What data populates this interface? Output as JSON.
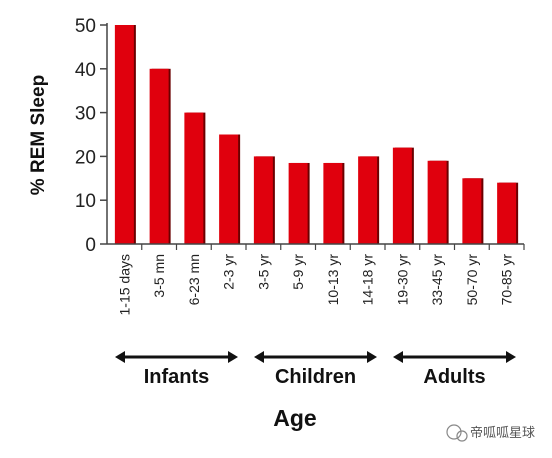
{
  "chart_data": {
    "type": "bar",
    "categories": [
      "1-15 days",
      "3-5 mn",
      "6-23 mn",
      "2-3 yr",
      "3-5 yr",
      "5-9 yr",
      "10-13 yr",
      "14-18 yr",
      "19-30 yr",
      "33-45 yr",
      "50-70 yr",
      "70-85 yr"
    ],
    "values": [
      50,
      40,
      30,
      25,
      20,
      18.5,
      18.5,
      20,
      22,
      19,
      15,
      14
    ],
    "xlabel": "Age",
    "ylabel": "% REM Sleep",
    "ylim": [
      0,
      50
    ],
    "yticks": [
      0,
      10,
      20,
      30,
      40,
      50
    ],
    "grid": false,
    "bar_color": "#e0000d",
    "groups": [
      {
        "label": "Infants",
        "from": 0,
        "to": 3
      },
      {
        "label": "Children",
        "from": 4,
        "to": 7
      },
      {
        "label": "Adults",
        "from": 8,
        "to": 11
      }
    ]
  },
  "watermark": "帝呱呱星球"
}
